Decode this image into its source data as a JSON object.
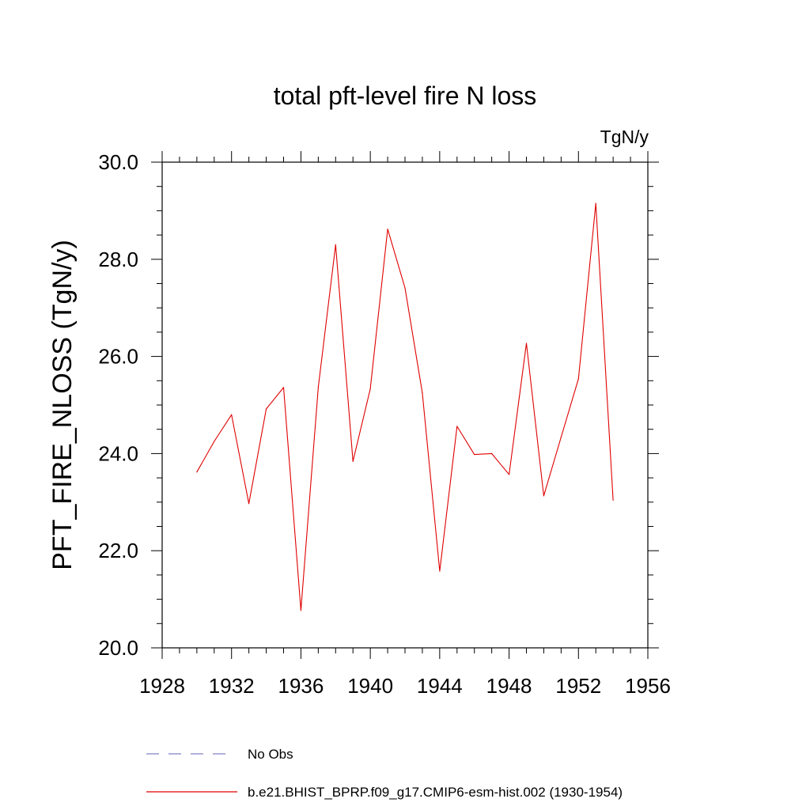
{
  "chart_data": {
    "type": "line",
    "title": "total pft-level fire N loss",
    "units_label": "TgN/y",
    "ylabel": "PFT_FIRE_NLOSS  (TgN/y)",
    "xlabel": "",
    "xlim": [
      1928,
      1956
    ],
    "ylim": [
      20.0,
      30.0
    ],
    "x_ticks": [
      "1928",
      "1932",
      "1936",
      "1940",
      "1944",
      "1948",
      "1952",
      "1956"
    ],
    "y_ticks": [
      "20.0",
      "22.0",
      "24.0",
      "26.0",
      "28.0",
      "30.0"
    ],
    "grid": false,
    "legend_position": "bottom",
    "legend": [
      {
        "label": "No Obs",
        "color": "#8080c8",
        "style": "dashed"
      },
      {
        "label": "b.e21.BHIST_BPRP.f09_g17.CMIP6-esm-hist.002 (1930-1954)",
        "color": "#e00000",
        "style": "solid"
      }
    ],
    "series": [
      {
        "name": "b.e21.BHIST_BPRP.f09_g17.CMIP6-esm-hist.002 (1930-1954)",
        "color": "#e00000",
        "x": [
          1930,
          1931,
          1932,
          1933,
          1934,
          1935,
          1936,
          1937,
          1938,
          1939,
          1940,
          1941,
          1942,
          1943,
          1944,
          1945,
          1946,
          1947,
          1948,
          1949,
          1950,
          1951,
          1952,
          1953,
          1954
        ],
        "values": [
          23.62,
          24.25,
          24.8,
          22.97,
          24.92,
          25.36,
          20.77,
          25.37,
          28.3,
          23.84,
          25.33,
          28.62,
          27.41,
          25.25,
          21.58,
          24.56,
          23.98,
          24.0,
          23.57,
          26.27,
          23.13,
          24.34,
          25.54,
          29.15,
          23.04
        ]
      }
    ]
  }
}
